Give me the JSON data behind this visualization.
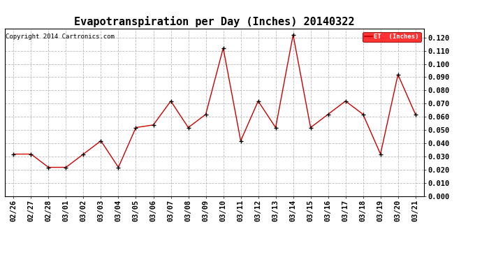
{
  "title": "Evapotranspiration per Day (Inches) 20140322",
  "copyright_text": "Copyright 2014 Cartronics.com",
  "legend_label": "ET  (Inches)",
  "legend_color": "#ff0000",
  "legend_text_color": "#ffffff",
  "line_color": "#cc0000",
  "marker_color": "#000000",
  "background_color": "#ffffff",
  "grid_color": "#bbbbbb",
  "dates": [
    "02/26",
    "02/27",
    "02/28",
    "03/01",
    "03/02",
    "03/03",
    "03/04",
    "03/05",
    "03/06",
    "03/07",
    "03/08",
    "03/09",
    "03/10",
    "03/11",
    "03/12",
    "03/13",
    "03/14",
    "03/15",
    "03/16",
    "03/17",
    "03/18",
    "03/19",
    "03/20",
    "03/21"
  ],
  "values": [
    0.032,
    0.032,
    0.022,
    0.022,
    0.032,
    0.042,
    0.022,
    0.052,
    0.054,
    0.072,
    0.052,
    0.062,
    0.112,
    0.042,
    0.072,
    0.052,
    0.122,
    0.052,
    0.062,
    0.072,
    0.062,
    0.032,
    0.092,
    0.062
  ],
  "ylim": [
    0.0,
    0.1265
  ],
  "yticks": [
    0.0,
    0.01,
    0.02,
    0.03,
    0.04,
    0.05,
    0.06,
    0.07,
    0.08,
    0.09,
    0.1,
    0.11,
    0.12
  ],
  "title_fontsize": 11,
  "copyright_fontsize": 6.5,
  "axis_fontsize": 7.5
}
